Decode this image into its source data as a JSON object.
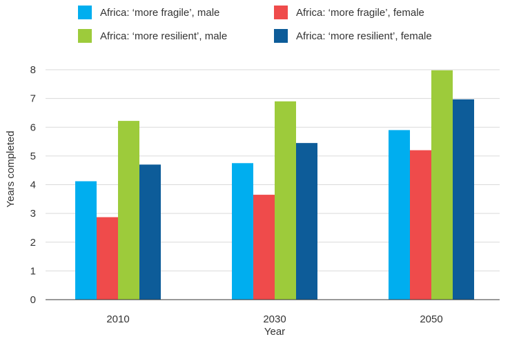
{
  "chart_data": {
    "type": "bar",
    "title": "",
    "xlabel": "Year",
    "ylabel": "Years completed",
    "categories": [
      "2010",
      "2030",
      "2050"
    ],
    "ylim": [
      0,
      8
    ],
    "yticks": [
      "0",
      "1",
      "2",
      "3",
      "4",
      "5",
      "6",
      "7",
      "8"
    ],
    "grid": true,
    "legend_position": "top",
    "series": [
      {
        "name": "Africa: ‘more fragile’, male",
        "color": "#00aeef",
        "values": [
          4.12,
          4.75,
          5.9
        ]
      },
      {
        "name": "Africa: ‘more fragile’, female",
        "color": "#ef4b4b",
        "values": [
          2.87,
          3.65,
          5.2
        ]
      },
      {
        "name": "Africa: ‘more resilient’, male",
        "color": "#9dcb3b",
        "values": [
          6.22,
          6.9,
          7.98
        ]
      },
      {
        "name": "Africa: ‘more resilient’, female",
        "color": "#0d5c99",
        "values": [
          4.7,
          5.45,
          6.97
        ]
      }
    ]
  }
}
